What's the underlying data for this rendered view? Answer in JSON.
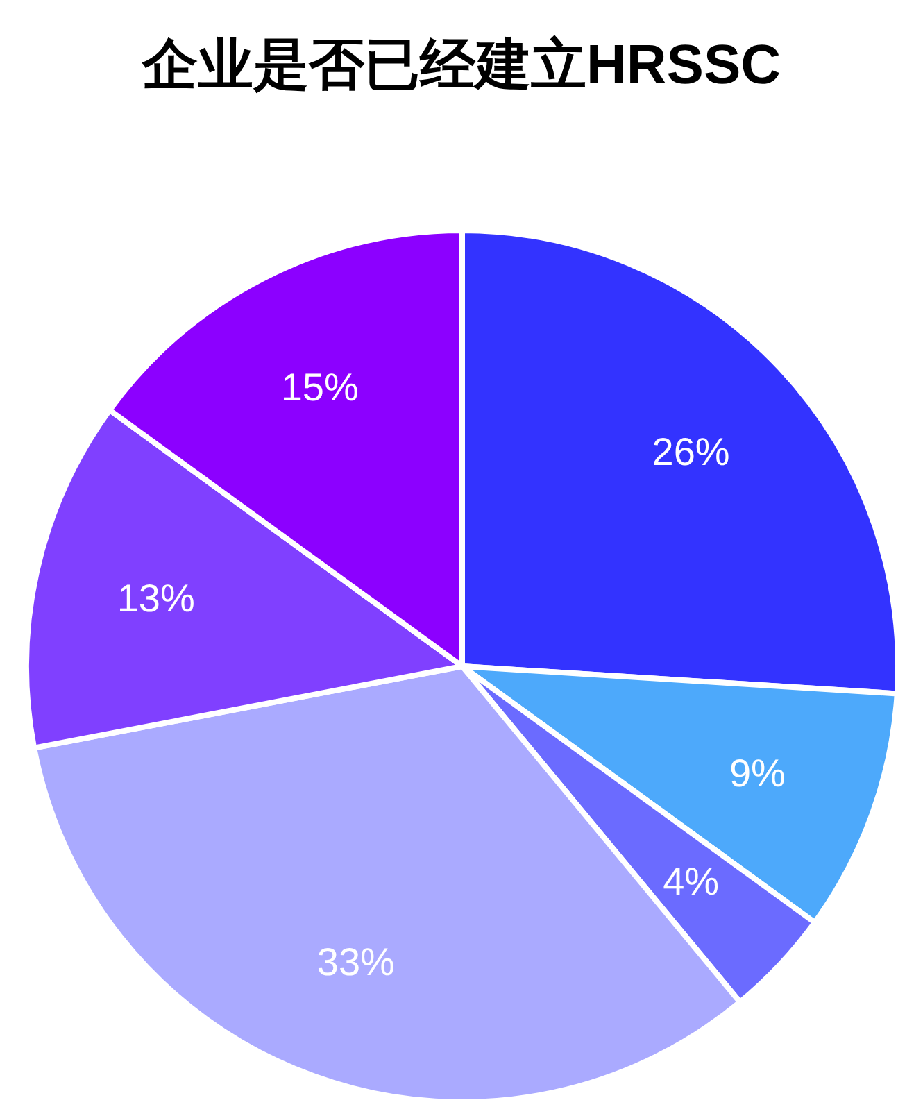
{
  "chart_data": {
    "type": "pie",
    "title": "企业是否已经建立HRSSC",
    "categories": [
      null,
      null,
      null,
      null,
      null,
      null
    ],
    "values": [
      26,
      9,
      4,
      33,
      13,
      15
    ],
    "colors": [
      "#3333ff",
      "#4da9fb",
      "#6b6bff",
      "#aaaaff",
      "#8040ff",
      "#8c00ff"
    ],
    "value_labels": [
      "26%",
      "9%",
      "4%",
      "33%",
      "13%",
      "15%"
    ]
  }
}
